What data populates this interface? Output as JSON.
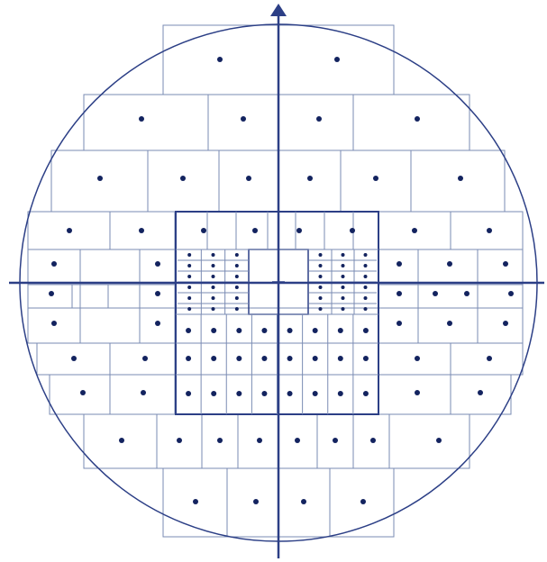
{
  "diagram": {
    "colors": {
      "line": "#7a8bb3",
      "axis": "#2c3f86",
      "dot": "#13235f",
      "background": "#ffffff"
    },
    "center_marker": "crosshair-plus",
    "axis_arrow": "up"
  }
}
